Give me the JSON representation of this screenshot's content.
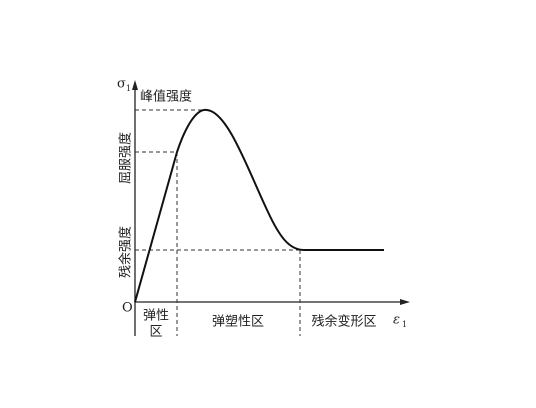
{
  "axes": {
    "y": {
      "symbol": "σ",
      "subscript": "1"
    },
    "x": {
      "symbol": "ε",
      "subscript": "1"
    },
    "origin": "O"
  },
  "levels": {
    "peak": "峰值强度",
    "yield": "屈服强度",
    "residual": "残余强度"
  },
  "zones": [
    {
      "lines": [
        "弹性",
        "区"
      ]
    },
    {
      "lines": [
        "弹塑性区"
      ]
    },
    {
      "lines": [
        "残余变形区"
      ]
    }
  ]
}
